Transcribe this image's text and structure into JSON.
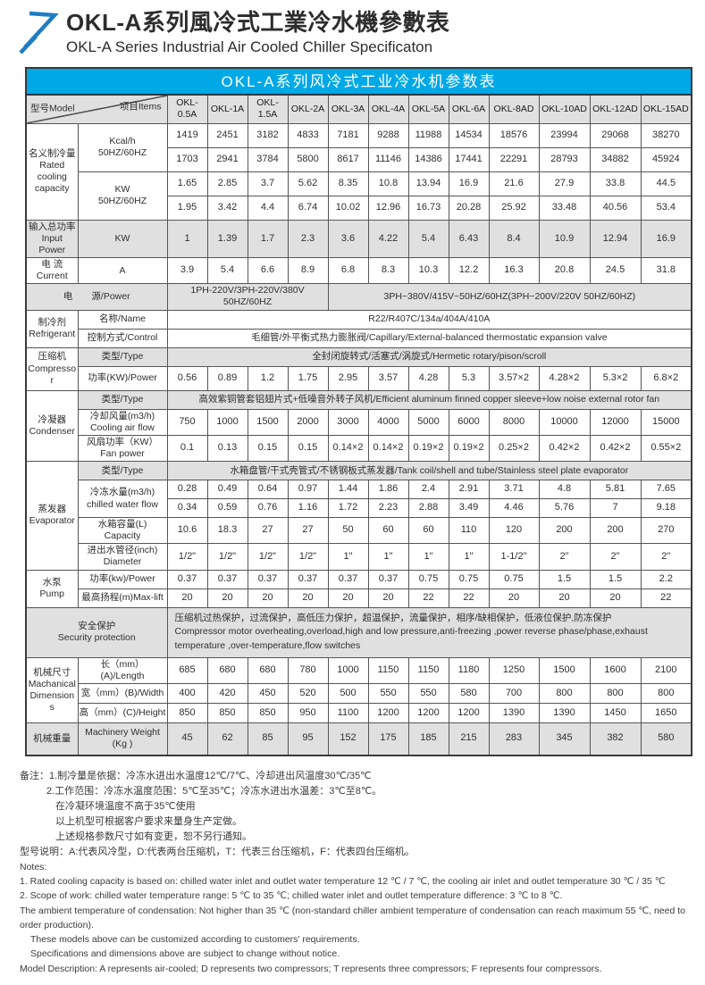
{
  "header": {
    "title_zh": "OKL-A系列風冷式工業冷水機參數表",
    "title_en": "OKL-A Series Industrial Air Cooled Chiller Specificaton",
    "logo_color": "#1e7cc2"
  },
  "table": {
    "banner": "OKL-A系列风冷式工业冷水机参数表",
    "banner_color": "#00a8e6",
    "corner": {
      "model": "型号Model",
      "items": "项目Items"
    },
    "models": [
      "OKL-0.5A",
      "OKL-1A",
      "OKL-1.5A",
      "OKL-2A",
      "OKL-3A",
      "OKL-4A",
      "OKL-5A",
      "OKL-6A",
      "OKL-8AD",
      "OKL-10AD",
      "OKL-12AD",
      "OKL-15AD"
    ],
    "cooling": {
      "cat": {
        "zh": "名义制冷量",
        "en": "Rated cooling capacity"
      },
      "kcal_label": {
        "l1": "Kcal/h",
        "l2": "50HZ/60HZ"
      },
      "kcal_50hz": [
        "1419",
        "2451",
        "3182",
        "4833",
        "7181",
        "9288",
        "11988",
        "14534",
        "18576",
        "23994",
        "29068",
        "38270"
      ],
      "kcal_60hz": [
        "1703",
        "2941",
        "3784",
        "5800",
        "8617",
        "11146",
        "14386",
        "17441",
        "22291",
        "28793",
        "34882",
        "45924"
      ],
      "kw_label": {
        "l1": "KW",
        "l2": "50HZ/60HZ"
      },
      "kw_50hz": [
        "1.65",
        "2.85",
        "3.7",
        "5.62",
        "8.35",
        "10.8",
        "13.94",
        "16.9",
        "21.6",
        "27.9",
        "33.8",
        "44.5"
      ],
      "kw_60hz": [
        "1.95",
        "3.42",
        "4.4",
        "6.74",
        "10.02",
        "12.96",
        "16.73",
        "20.28",
        "25.92",
        "33.48",
        "40.56",
        "53.4"
      ]
    },
    "input_power": {
      "cat": {
        "zh": "输入总功率",
        "en": "Input Power"
      },
      "unit": "KW",
      "values": [
        "1",
        "1.39",
        "1.7",
        "2.3",
        "3.6",
        "4.22",
        "5.4",
        "6.43",
        "8.4",
        "10.9",
        "12.94",
        "16.9"
      ]
    },
    "current": {
      "cat": {
        "zh": "电 流",
        "en": "Current"
      },
      "unit": "A",
      "values": [
        "3.9",
        "5.4",
        "6.6",
        "8.9",
        "6.8",
        "8.3",
        "10.3",
        "12.2",
        "16.3",
        "20.8",
        "24.5",
        "31.8"
      ]
    },
    "power_supply": {
      "label": "电　　源/Power",
      "left": "1PH-220V/3PH-220V/380V 50HZ/60HZ",
      "right": "3PH~380V/415V~50HZ/60HZ(3PH~200V/220V  50HZ/60HZ)"
    },
    "refrigerant": {
      "cat": {
        "zh": "制冷剂",
        "en": "Refrigerant"
      },
      "name_label": "名称/Name",
      "name": "R22/R407C/134a/404A/410A",
      "control_label": "控制方式/Control",
      "control": "毛细管/外平衡式热力膨胀阀/Capillary/External-balanced thermostatic expansion valve"
    },
    "compressor": {
      "cat": {
        "zh": "压缩机",
        "en": "Compressor"
      },
      "type_label": "类型/Type",
      "type": "全封闭旋转式/活塞式/涡旋式/Hermetic rotary/pison/scroll",
      "power_label": "功率(KW)/Power",
      "power": [
        "0.56",
        "0.89",
        "1.2",
        "1.75",
        "2.95",
        "3.57",
        "4.28",
        "5.3",
        "3.57×2",
        "4.28×2",
        "5.3×2",
        "6.8×2"
      ]
    },
    "condenser": {
      "cat": {
        "zh": "冷凝器",
        "en": "Condenser"
      },
      "type_label": "类型/Type",
      "type": "高效紫铜管套铝翅片式+低噪音外转子风机/Efficient aluminum finned copper sleeve+low noise external rotor fan",
      "airflow_label": {
        "l1": "冷却风量(m3/h)",
        "l2": "Cooling air flow"
      },
      "airflow": [
        "750",
        "1000",
        "1500",
        "2000",
        "3000",
        "4000",
        "5000",
        "6000",
        "8000",
        "10000",
        "12000",
        "15000"
      ],
      "fan_label": {
        "l1": "风扇功率（KW）",
        "l2": "Fan power"
      },
      "fan": [
        "0.1",
        "0.13",
        "0.15",
        "0.15",
        "0.14×2",
        "0.14×2",
        "0.19×2",
        "0.19×2",
        "0.25×2",
        "0.42×2",
        "0.42×2",
        "0.55×2"
      ]
    },
    "evaporator": {
      "cat": {
        "zh": "蒸发器",
        "en": "Evaporator"
      },
      "type_label": "类型/Type",
      "type": "水箱盘管/干式壳管式/不锈钢板式蒸发器/Tank coil/shell and tube/Stainless steel plate evaporator",
      "chilled_label": {
        "l1": "冷冻水量(m3/h)",
        "l2": "chilled water flow"
      },
      "chilled_50hz": [
        "0.28",
        "0.49",
        "0.64",
        "0.97",
        "1.44",
        "1.86",
        "2.4",
        "2.91",
        "3.71",
        "4.8",
        "5.81",
        "7.65"
      ],
      "chilled_60hz": [
        "0.34",
        "0.59",
        "0.76",
        "1.16",
        "1.72",
        "2.23",
        "2.88",
        "3.49",
        "4.46",
        "5.76",
        "7",
        "9.18"
      ],
      "capacity_label": {
        "l1": "水箱容量(L)",
        "l2": "Capacity"
      },
      "capacity": [
        "10.6",
        "18.3",
        "27",
        "27",
        "50",
        "60",
        "60",
        "110",
        "120",
        "200",
        "200",
        "270"
      ],
      "diameter_label": {
        "l1": "进出水管径(inch)",
        "l2": "Diameter"
      },
      "diameter": [
        "1/2\"",
        "1/2\"",
        "1/2\"",
        "1/2\"",
        "1\"",
        "1\"",
        "1\"",
        "1\"",
        "1-1/2\"",
        "2\"",
        "2\"",
        "2\""
      ]
    },
    "pump": {
      "cat": {
        "zh": "水泵",
        "en": "Pump"
      },
      "power_label": "功率(kw)/Power",
      "power": [
        "0.37",
        "0.37",
        "0.37",
        "0.37",
        "0.37",
        "0.37",
        "0.75",
        "0.75",
        "0.75",
        "1.5",
        "1.5",
        "2.2"
      ],
      "lift_label": "最高扬程(m)Max-lift",
      "lift": [
        "20",
        "20",
        "20",
        "20",
        "20",
        "20",
        "22",
        "22",
        "20",
        "20",
        "20",
        "22"
      ]
    },
    "security": {
      "cat": {
        "zh": "安全保护",
        "en": "Security protection"
      },
      "zh": "压缩机过热保护，过流保护，高低压力保护，超温保护，流量保护，相序/缺相保护，低液位保护,防冻保护",
      "en": "Compressor motor overheating,overload,high and low pressure,anti-freezing ,power reverse phase/phase,exhaust temperature ,over-temperature,flow switches"
    },
    "dimensions": {
      "cat": {
        "zh": "机械尺寸",
        "en": "Machanical Dimensions"
      },
      "length_label": "长（mm）(A)/Length",
      "length": [
        "685",
        "680",
        "680",
        "780",
        "1000",
        "1150",
        "1150",
        "1180",
        "1250",
        "1500",
        "1600",
        "2100"
      ],
      "width_label": "宽（mm）(B)/Width",
      "width": [
        "400",
        "420",
        "450",
        "520",
        "500",
        "550",
        "550",
        "580",
        "700",
        "800",
        "800",
        "800"
      ],
      "height_label": "高（mm）(C)/Height",
      "height": [
        "850",
        "850",
        "850",
        "950",
        "1100",
        "1200",
        "1200",
        "1200",
        "1390",
        "1390",
        "1450",
        "1650"
      ]
    },
    "weight": {
      "cat_zh": "机械重量",
      "label": {
        "l1": "Machinery Weight",
        "l2": "(Kg )"
      },
      "values": [
        "45",
        "62",
        "85",
        "95",
        "152",
        "175",
        "185",
        "215",
        "283",
        "345",
        "382",
        "580"
      ]
    }
  },
  "notes_zh": [
    "备注：1.制冷量是依据：冷冻水进出水温度12℃/7℃、冷却进出风温度30℃/35℃",
    "2.工作范围：冷冻水温度范围：5℃至35℃；冷冻水进出水温差：3℃至8℃。",
    "在冷凝环境温度不高于35℃使用",
    "以上机型可根据客户要求来量身生产定做。",
    "上述规格参数尺寸如有变更，恕不另行通知。",
    "型号说明：A:代表风冷型，D:代表两台压缩机，T：代表三台压缩机，F：代表四台压缩机。"
  ],
  "notes_en": [
    "Notes:",
    "1. Rated cooling capacity is based on: chilled water inlet and outlet water temperature 12 ℃ / 7 ℃, the cooling air inlet and outlet temperature 30 ℃ / 35 ℃",
    "2. Scope of work: chilled water temperature range: 5 ℃ to 35 ℃; chilled water inlet and outlet temperature difference: 3 ℃ to 8 ℃.",
    "The ambient temperature of condensation: Not higher than 35 ℃ (non-standard chiller ambient temperature of condensation can reach maximum 55 ℃, need to order production).",
    "These models above can be customized according to customers'  requirements.",
    "Specifications and dimensions above are subject to change without notice.",
    "Model Description: A represents air-cooled; D represents two compressors; T represents three compressors; F represents four compressors."
  ]
}
